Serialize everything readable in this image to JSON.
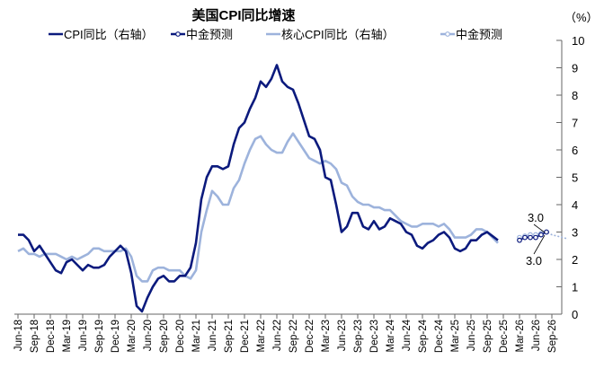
{
  "chart_data": {
    "type": "line",
    "title": "美国CPI同比增速",
    "unit": "（%）",
    "yaxis_side": "right",
    "ylim": [
      0,
      10
    ],
    "yticks": [
      0,
      1,
      2,
      3,
      4,
      5,
      6,
      7,
      8,
      9,
      10
    ],
    "grid": false,
    "legend_placement": "top",
    "x_start": "Jun-18",
    "xticks": [
      "Jun-18",
      "Sep-18",
      "Dec-18",
      "Mar-19",
      "Jun-19",
      "Sep-19",
      "Dec-19",
      "Mar-20",
      "Jun-20",
      "Sep-20",
      "Dec-20",
      "Mar-21",
      "Jun-21",
      "Sep-21",
      "Dec-21",
      "Mar-22",
      "Jun-22",
      "Sep-22",
      "Dec-22",
      "Mar-23",
      "Jun-23",
      "Sep-23",
      "Dec-23",
      "Mar-24",
      "Jun-24",
      "Sep-24",
      "Dec-24",
      "Mar-25",
      "Jun-25",
      "Sep-25",
      "Dec-25",
      "Mar-26",
      "Jun-26",
      "Sep-26"
    ],
    "series": [
      {
        "name": "CPI同比（右轴）",
        "color": "#0b1a7d",
        "style": "solid",
        "start": "Jun-18",
        "values": [
          2.9,
          2.9,
          2.7,
          2.3,
          2.5,
          2.2,
          1.9,
          1.6,
          1.5,
          1.9,
          2.0,
          1.8,
          1.6,
          1.8,
          1.7,
          1.7,
          1.8,
          2.1,
          2.3,
          2.5,
          2.3,
          1.5,
          0.3,
          0.1,
          0.6,
          1.0,
          1.3,
          1.4,
          1.2,
          1.2,
          1.4,
          1.4,
          1.7,
          2.6,
          4.2,
          5.0,
          5.4,
          5.4,
          5.3,
          5.4,
          6.2,
          6.8,
          7.0,
          7.5,
          7.9,
          8.5,
          8.3,
          8.6,
          9.1,
          8.5,
          8.3,
          8.2,
          7.7,
          7.1,
          6.5,
          6.4,
          6.0,
          5.0,
          4.9,
          4.0,
          3.0,
          3.2,
          3.7,
          3.7,
          3.2,
          3.1,
          3.4,
          3.1,
          3.2,
          3.5,
          3.4,
          3.3,
          3.0,
          2.9,
          2.5,
          2.4,
          2.6,
          2.7,
          2.9,
          3.0,
          2.8,
          2.4,
          2.3,
          2.4,
          2.7,
          2.7,
          2.9,
          3.0,
          2.85,
          2.7
        ]
      },
      {
        "name": "中金预测",
        "color": "#0b1a7d",
        "style": "markers",
        "start": "Mar-26",
        "values": [
          2.7,
          2.8,
          2.8,
          2.8,
          2.9,
          3.0
        ]
      },
      {
        "name": "核心CPI同比（右轴）",
        "color": "#9db3dc",
        "style": "solid",
        "start": "Jun-18",
        "values": [
          2.3,
          2.4,
          2.2,
          2.2,
          2.1,
          2.2,
          2.2,
          2.2,
          2.1,
          2.0,
          2.1,
          2.0,
          2.1,
          2.2,
          2.4,
          2.4,
          2.3,
          2.3,
          2.3,
          2.3,
          2.4,
          2.1,
          1.4,
          1.2,
          1.2,
          1.6,
          1.7,
          1.7,
          1.6,
          1.6,
          1.6,
          1.4,
          1.3,
          1.6,
          3.0,
          3.8,
          4.5,
          4.3,
          4.0,
          4.0,
          4.6,
          4.9,
          5.5,
          6.0,
          6.4,
          6.5,
          6.2,
          6.0,
          5.9,
          5.9,
          6.3,
          6.6,
          6.3,
          6.0,
          5.7,
          5.6,
          5.5,
          5.6,
          5.5,
          5.3,
          4.8,
          4.7,
          4.3,
          4.1,
          4.0,
          4.0,
          3.9,
          3.9,
          3.8,
          3.8,
          3.6,
          3.4,
          3.3,
          3.2,
          3.2,
          3.3,
          3.3,
          3.3,
          3.2,
          3.3,
          3.1,
          2.8,
          2.8,
          2.8,
          2.9,
          3.1,
          3.1,
          3.0,
          2.8,
          2.6
        ]
      },
      {
        "name": "中金预测",
        "color": "#9db3dc",
        "style": "markers-dotted",
        "start": "Mar-26",
        "values": [
          2.8,
          2.85,
          2.9,
          2.9,
          2.95,
          3.0,
          2.9,
          2.85,
          2.8,
          2.75
        ]
      }
    ],
    "annotations": [
      "3.0",
      "3.0"
    ]
  }
}
